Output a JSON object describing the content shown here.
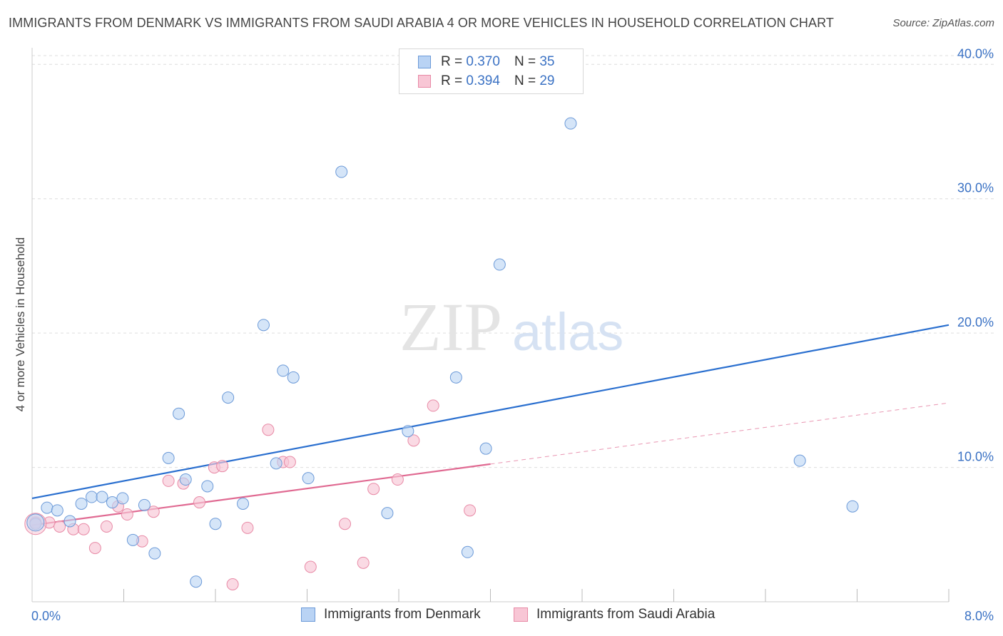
{
  "title": "IMMIGRANTS FROM DENMARK VS IMMIGRANTS FROM SAUDI ARABIA 4 OR MORE VEHICLES IN HOUSEHOLD CORRELATION CHART",
  "source": "Source: ZipAtlas.com",
  "watermark": {
    "zip": "ZIP",
    "atlas": "atlas"
  },
  "legend_top": [
    {
      "r_label": "R =",
      "r_value": "0.370",
      "n_label": "N =",
      "n_value": "35"
    },
    {
      "r_label": "R =",
      "r_value": "0.394",
      "n_label": "N =",
      "n_value": "29"
    }
  ],
  "colors": {
    "denmark_fill": "#b9d3f4",
    "denmark_stroke": "#6c9ad8",
    "denmark_line": "#2a6fcf",
    "saudi_fill": "#f8c6d5",
    "saudi_stroke": "#e88aa6",
    "saudi_line": "#e06a92",
    "axis_text": "#3b72c4",
    "grid": "#dddddd"
  },
  "chart_data": {
    "type": "scatter",
    "title": "IMMIGRANTS FROM DENMARK VS IMMIGRANTS FROM SAUDI ARABIA 4 OR MORE VEHICLES IN HOUSEHOLD CORRELATION CHART",
    "xlabel": "",
    "ylabel": "4 or more Vehicles in Household",
    "xlim": [
      0,
      8
    ],
    "ylim": [
      0,
      41.5
    ],
    "x_tick_labels": [
      "0.0%",
      "8.0%"
    ],
    "y_ticks": [
      10,
      20,
      30,
      40
    ],
    "y_tick_labels": [
      "10.0%",
      "20.0%",
      "30.0%",
      "40.0%"
    ],
    "grid": true,
    "legend_position": "top-center",
    "series": [
      {
        "name": "Immigrants from Denmark",
        "r": 0.37,
        "n": 35,
        "trend": {
          "x0": 0.0,
          "y0": 7.7,
          "x1": 8.0,
          "y1": 20.6,
          "dashed_from": null
        },
        "points": [
          [
            0.03,
            5.8
          ],
          [
            0.13,
            7.0
          ],
          [
            0.22,
            6.8
          ],
          [
            0.33,
            6.0
          ],
          [
            0.43,
            7.3
          ],
          [
            0.52,
            7.8
          ],
          [
            0.61,
            7.8
          ],
          [
            0.7,
            7.4
          ],
          [
            0.79,
            7.7
          ],
          [
            0.88,
            4.6
          ],
          [
            0.98,
            7.2
          ],
          [
            1.07,
            3.6
          ],
          [
            1.19,
            10.7
          ],
          [
            1.28,
            14.0
          ],
          [
            1.34,
            9.1
          ],
          [
            1.43,
            1.5
          ],
          [
            1.53,
            8.6
          ],
          [
            1.6,
            5.8
          ],
          [
            1.71,
            15.2
          ],
          [
            1.84,
            7.3
          ],
          [
            2.02,
            20.6
          ],
          [
            2.13,
            10.3
          ],
          [
            2.19,
            17.2
          ],
          [
            2.28,
            16.7
          ],
          [
            2.41,
            9.2
          ],
          [
            2.7,
            32.0
          ],
          [
            3.1,
            6.6
          ],
          [
            3.28,
            12.7
          ],
          [
            3.7,
            16.7
          ],
          [
            3.8,
            3.7
          ],
          [
            3.96,
            11.4
          ],
          [
            4.08,
            25.1
          ],
          [
            4.7,
            35.6
          ],
          [
            6.7,
            10.5
          ],
          [
            7.16,
            7.1
          ]
        ]
      },
      {
        "name": "Immigrants from Saudi Arabia",
        "r": 0.394,
        "n": 29,
        "trend": {
          "x0": 0.0,
          "y0": 5.7,
          "x1": 8.0,
          "y1": 14.8,
          "solid_to": 4.0
        },
        "points": [
          [
            0.03,
            5.9
          ],
          [
            0.15,
            5.9
          ],
          [
            0.24,
            5.6
          ],
          [
            0.36,
            5.4
          ],
          [
            0.45,
            5.4
          ],
          [
            0.55,
            4.0
          ],
          [
            0.65,
            5.6
          ],
          [
            0.75,
            7.1
          ],
          [
            0.83,
            6.5
          ],
          [
            0.96,
            4.5
          ],
          [
            1.06,
            6.7
          ],
          [
            1.19,
            9.0
          ],
          [
            1.32,
            8.8
          ],
          [
            1.46,
            7.4
          ],
          [
            1.59,
            10.0
          ],
          [
            1.66,
            10.1
          ],
          [
            1.75,
            1.3
          ],
          [
            1.88,
            5.5
          ],
          [
            2.06,
            12.8
          ],
          [
            2.19,
            10.4
          ],
          [
            2.25,
            10.4
          ],
          [
            2.43,
            2.6
          ],
          [
            2.73,
            5.8
          ],
          [
            2.89,
            2.9
          ],
          [
            2.98,
            8.4
          ],
          [
            3.19,
            9.1
          ],
          [
            3.33,
            12.0
          ],
          [
            3.5,
            14.6
          ],
          [
            3.82,
            6.8
          ]
        ]
      }
    ]
  },
  "legend_bottom": [
    {
      "label": "Immigrants from Denmark"
    },
    {
      "label": "Immigrants from Saudi Arabia"
    }
  ]
}
